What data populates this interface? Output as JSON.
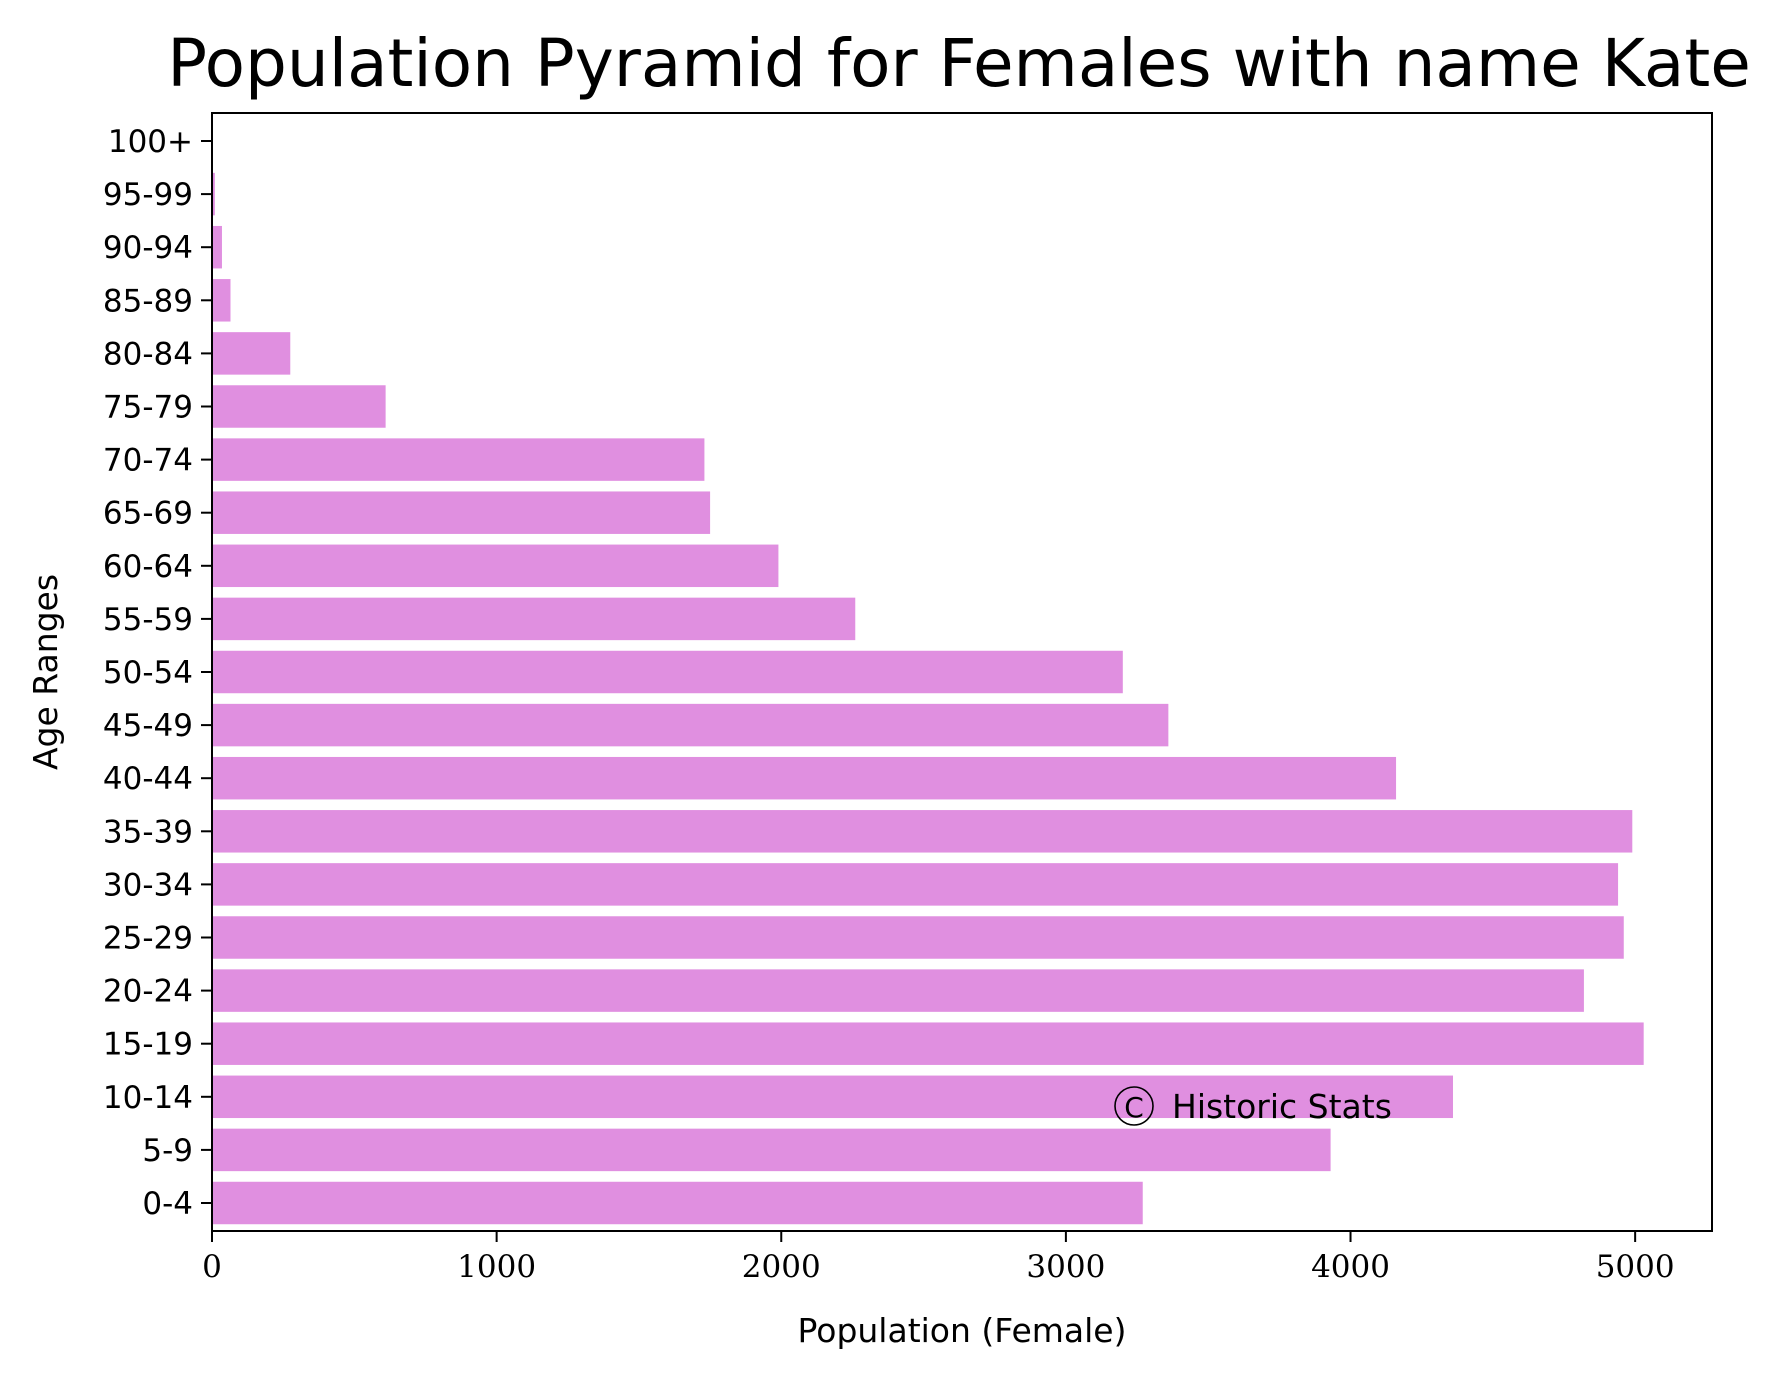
{
  "chart_data": {
    "type": "bar",
    "orientation": "horizontal",
    "title": "Population Pyramid for Females with name Kate",
    "xlabel": "Population (Female)",
    "ylabel": "Age Ranges",
    "xlim": [
      0,
      5270
    ],
    "xticks": [
      0,
      1000,
      2000,
      3000,
      4000,
      5000
    ],
    "xtick_labels": [
      "0",
      "1000",
      "2000",
      "3000",
      "4000",
      "5000"
    ],
    "categories": [
      "0-4",
      "5-9",
      "10-14",
      "15-19",
      "20-24",
      "25-29",
      "30-34",
      "35-39",
      "40-44",
      "45-49",
      "50-54",
      "55-59",
      "60-64",
      "65-69",
      "70-74",
      "75-79",
      "80-84",
      "85-89",
      "90-94",
      "95-99",
      "100+"
    ],
    "series": [
      {
        "values": [
          3270,
          3930,
          4360,
          5030,
          4820,
          4960,
          4940,
          4990,
          4160,
          3360,
          3200,
          2260,
          1990,
          1750,
          1730,
          610,
          275,
          65,
          35,
          10,
          0
        ]
      }
    ],
    "bar_color": "#e08fe0",
    "grid": false,
    "legend": null,
    "watermark": "Historic Stats"
  }
}
